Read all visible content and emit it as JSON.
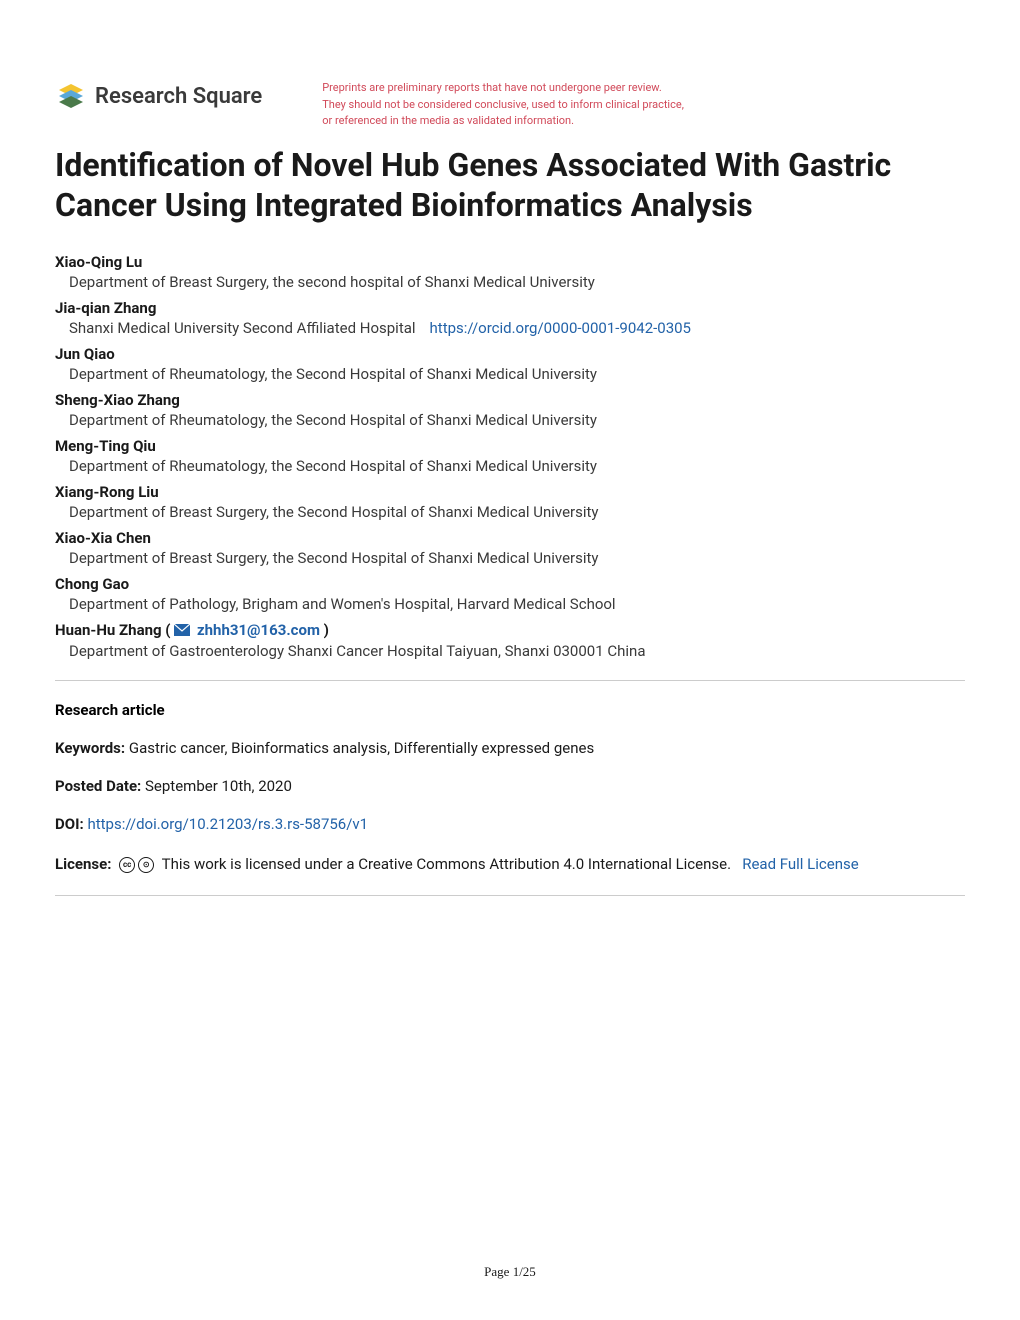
{
  "header": {
    "logo_text": "Research Square",
    "disclaimer_line1": "Preprints are preliminary reports that have not undergone peer review.",
    "disclaimer_line2": "They should not be considered conclusive, used to inform clinical practice,",
    "disclaimer_line3": "or referenced in the media as validated information.",
    "disclaimer_color": "#d14959"
  },
  "title": "Identification of Novel Hub Genes Associated With Gastric Cancer Using Integrated Bioinformatics Analysis",
  "authors": [
    {
      "name": "Xiao-Qing Lu",
      "affiliation": "Department of Breast Surgery, the second hospital of Shanxi Medical University"
    },
    {
      "name": "Jia-qian Zhang",
      "affiliation": "Shanxi Medical University Second Affiliated Hospital",
      "orcid": "https://orcid.org/0000-0001-9042-0305"
    },
    {
      "name": "Jun Qiao",
      "affiliation": "Department of Rheumatology, the Second Hospital of Shanxi Medical University"
    },
    {
      "name": "Sheng-Xiao Zhang",
      "affiliation": "Department of Rheumatology, the Second Hospital of Shanxi Medical University"
    },
    {
      "name": "Meng-Ting Qiu",
      "affiliation": "Department of Rheumatology, the Second Hospital of Shanxi Medical University"
    },
    {
      "name": "Xiang-Rong Liu",
      "affiliation": "Department of Breast Surgery, the Second Hospital of Shanxi Medical University"
    },
    {
      "name": "Xiao-Xia Chen",
      "affiliation": "Department of Breast Surgery, the Second Hospital of Shanxi Medical University"
    },
    {
      "name": "Chong Gao",
      "affiliation": "Department of Pathology, Brigham and Women's Hospital, Harvard Medical School"
    },
    {
      "name": "Huan-Hu Zhang",
      "affiliation": "Department of Gastroenterology Shanxi Cancer Hospital Taiyuan, Shanxi 030001 China",
      "email": "zhhh31@163.com",
      "is_corresponding": true
    }
  ],
  "article_type": "Research article",
  "keywords_label": "Keywords:",
  "keywords_value": "Gastric cancer, Bioinformatics analysis, Differentially expressed genes",
  "posted_date_label": "Posted Date:",
  "posted_date_value": "September 10th, 2020",
  "doi_label": "DOI:",
  "doi_value": "https://doi.org/10.21203/rs.3.rs-58756/v1",
  "license_label": "License:",
  "license_text": "This work is licensed under a Creative Commons Attribution 4.0 International License.",
  "license_link_text": "Read Full License",
  "page_number": "Page 1/25",
  "colors": {
    "link_color": "#2262a8",
    "text_color": "#1a1a1a",
    "divider_color": "#cccccc"
  }
}
